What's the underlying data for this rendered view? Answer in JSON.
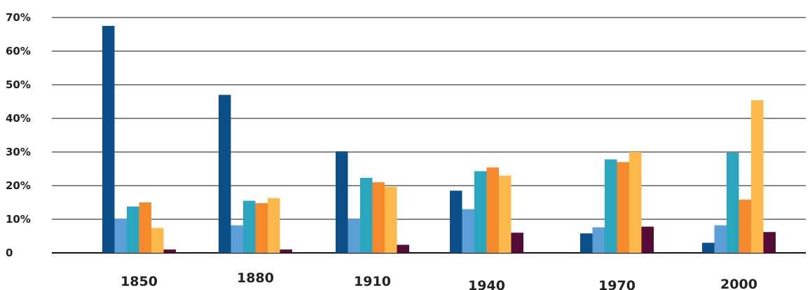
{
  "chart_data": {
    "type": "bar",
    "title": "",
    "xlabel": "",
    "ylabel": "",
    "categories": [
      "1850",
      "1880",
      "1910",
      "1940",
      "1970",
      "2000"
    ],
    "ylim": [
      0,
      70
    ],
    "y_ticks": [
      0,
      10,
      20,
      30,
      40,
      50,
      60,
      70
    ],
    "y_tick_labels": [
      "0",
      "10%",
      "20%",
      "30%",
      "40%",
      "50%",
      "60%",
      "70%"
    ],
    "grid": true,
    "legend": "none",
    "series": [
      {
        "color": "#0b5088",
        "values": [
          67.5,
          47.0,
          30.2,
          18.5,
          5.8,
          3.0
        ]
      },
      {
        "color": "#5b9fd6",
        "values": [
          10.2,
          8.2,
          10.0,
          13.0,
          7.6,
          8.2
        ]
      },
      {
        "color": "#2aa6bf",
        "values": [
          13.8,
          15.5,
          22.3,
          24.3,
          27.8,
          29.8
        ]
      },
      {
        "color": "#f5892c",
        "values": [
          15.0,
          14.8,
          21.0,
          25.4,
          27.0,
          15.8
        ]
      },
      {
        "color": "#fdb84a",
        "values": [
          7.4,
          16.3,
          19.6,
          23.0,
          30.0,
          45.4
        ]
      },
      {
        "color": "#540d38",
        "values": [
          1.0,
          1.0,
          2.4,
          6.0,
          7.8,
          6.2
        ]
      }
    ]
  }
}
